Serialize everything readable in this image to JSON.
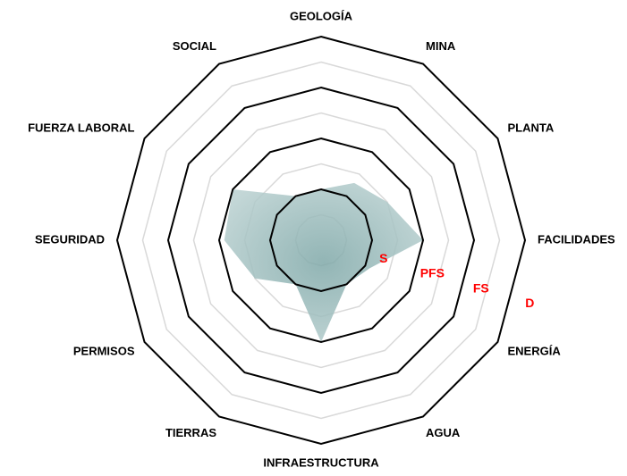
{
  "chart_data": {
    "type": "radar",
    "categories": [
      "GEOLOGÍA",
      "MINA",
      "PLANTA",
      "FACILIDADES",
      "ENERGÍA",
      "AGUA",
      "INFRAESTRUCTURA",
      "TIERRAS",
      "PERMISOS",
      "SEGURIDAD",
      "FUERZA LABORAL",
      "SOCIAL"
    ],
    "values": [
      1,
      1.3,
      1.5,
      2,
      1.1,
      1,
      2,
      1,
      1.5,
      1.9,
      2,
      1
    ],
    "color": "#7fa8a8",
    "rlim": [
      0,
      4
    ],
    "rticks": [
      {
        "value": 1,
        "label": "S"
      },
      {
        "value": 2,
        "label": "PFS"
      },
      {
        "value": 3,
        "label": "FS"
      },
      {
        "value": 4,
        "label": "D"
      }
    ],
    "minor_rticks": [
      0.5,
      1.5,
      2.5,
      3.5
    ],
    "grid": true
  }
}
